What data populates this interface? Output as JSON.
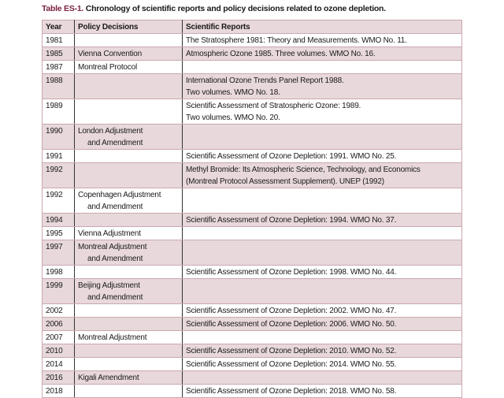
{
  "caption": {
    "label": "Table ES-1.",
    "text": " Chronology of scientific reports and policy decisions related to ozone depletion."
  },
  "headers": [
    "Year",
    "Policy Decisions",
    "Scientific Reports"
  ],
  "colors": {
    "row_shade": "#e8d8db",
    "label": "#7a1f3d",
    "border": "#c9a9b0"
  },
  "rows": [
    {
      "year": "1981",
      "policy": [
        "",
        ""
      ],
      "report": [
        "The Stratosphere 1981: Theory and Measurements. WMO No. 11.",
        ""
      ]
    },
    {
      "year": "1985",
      "policy": [
        "Vienna Convention",
        ""
      ],
      "report": [
        "Atmospheric Ozone 1985. Three volumes. WMO No. 16.",
        ""
      ]
    },
    {
      "year": "1987",
      "policy": [
        "Montreal Protocol",
        ""
      ],
      "report": [
        "",
        ""
      ]
    },
    {
      "year": "1988",
      "policy": [
        "",
        ""
      ],
      "report": [
        "International Ozone Trends Panel Report 1988.",
        "Two volumes. WMO No. 18."
      ]
    },
    {
      "year": "1989",
      "policy": [
        "",
        ""
      ],
      "report": [
        "Scientific Assessment of Stratospheric Ozone: 1989.",
        "Two volumes. WMO No. 20."
      ]
    },
    {
      "year": "1990",
      "policy": [
        "London Adjustment",
        "and Amendment"
      ],
      "report": [
        "",
        ""
      ]
    },
    {
      "year": "1991",
      "policy": [
        "",
        ""
      ],
      "report": [
        "Scientific Assessment of Ozone Depletion: 1991. WMO No. 25.",
        ""
      ]
    },
    {
      "year": "1992",
      "policy": [
        "",
        ""
      ],
      "report": [
        "Methyl Bromide: Its Atmospheric Science, Technology, and Economics",
        "(Montreal Protocol Assessment Supplement). UNEP (1992)"
      ]
    },
    {
      "year": "1992",
      "policy": [
        "Copenhagen Adjustment",
        "and Amendment"
      ],
      "report": [
        "",
        ""
      ]
    },
    {
      "year": "1994",
      "policy": [
        "",
        ""
      ],
      "report": [
        "Scientific Assessment of Ozone Depletion: 1994. WMO No. 37.",
        ""
      ]
    },
    {
      "year": "1995",
      "policy": [
        "Vienna Adjustment",
        ""
      ],
      "report": [
        "",
        ""
      ]
    },
    {
      "year": "1997",
      "policy": [
        "Montreal Adjustment",
        "and Amendment"
      ],
      "report": [
        "",
        ""
      ]
    },
    {
      "year": "1998",
      "policy": [
        "",
        ""
      ],
      "report": [
        "Scientific Assessment of Ozone Depletion: 1998. WMO No. 44.",
        ""
      ]
    },
    {
      "year": "1999",
      "policy": [
        "Beijing Adjustment",
        "and Amendment"
      ],
      "report": [
        "",
        ""
      ]
    },
    {
      "year": "2002",
      "policy": [
        "",
        ""
      ],
      "report": [
        "Scientific Assessment of Ozone Depletion: 2002. WMO No. 47.",
        ""
      ]
    },
    {
      "year": "2006",
      "policy": [
        "",
        ""
      ],
      "report": [
        "Scientific Assessment of Ozone Depletion: 2006. WMO No. 50.",
        ""
      ]
    },
    {
      "year": "2007",
      "policy": [
        "Montreal Adjustment",
        ""
      ],
      "report": [
        "",
        ""
      ]
    },
    {
      "year": "2010",
      "policy": [
        "",
        ""
      ],
      "report": [
        "Scientific Assessment of Ozone Depletion: 2010. WMO No. 52.",
        ""
      ]
    },
    {
      "year": "2014",
      "policy": [
        "",
        ""
      ],
      "report": [
        "Scientific Assessment of Ozone Depletion: 2014. WMO No. 55.",
        ""
      ]
    },
    {
      "year": "2016",
      "policy": [
        "Kigali Amendment",
        ""
      ],
      "report": [
        "",
        ""
      ]
    },
    {
      "year": "2018",
      "policy": [
        "",
        ""
      ],
      "report": [
        "Scientific Assessment of Ozone Depletion: 2018. WMO No. 58.",
        ""
      ]
    }
  ]
}
